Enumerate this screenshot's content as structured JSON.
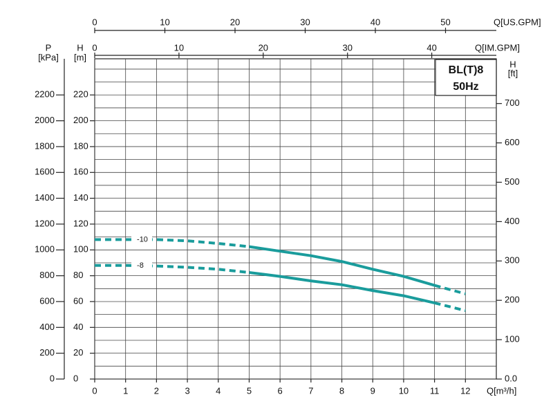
{
  "chart_data": {
    "type": "line",
    "title": "BL(T)8",
    "subtitle": "50Hz",
    "xlabel": "Q[m³/h]",
    "xlim": [
      0,
      13
    ],
    "xticks": [
      0,
      1,
      2,
      3,
      4,
      5,
      6,
      7,
      8,
      9,
      10,
      11,
      12
    ],
    "ylabel": "H",
    "yunit": "[m]",
    "ylim": [
      0,
      248
    ],
    "yticks": [
      0,
      20,
      40,
      60,
      80,
      100,
      120,
      140,
      160,
      180,
      200,
      220
    ],
    "yminor": [
      10,
      30,
      50,
      70,
      90,
      110,
      130,
      150,
      170,
      190,
      210,
      230,
      240
    ],
    "pressure_axis": {
      "label": "P",
      "unit": "[kPa]",
      "lim": [
        0,
        2480
      ],
      "ticks": [
        0,
        200,
        400,
        600,
        800,
        1000,
        1200,
        1400,
        1600,
        1800,
        2000,
        2200
      ]
    },
    "feet_axis": {
      "label": "H",
      "unit": "[ft]",
      "lim": [
        0,
        813.65
      ],
      "ticks": [
        {
          "value": 0,
          "label": "0.0"
        },
        100,
        200,
        300,
        400,
        500,
        600,
        700
      ]
    },
    "us_gpm_axis": {
      "label": "Q[US.GPM]",
      "lim": [
        0,
        57.24
      ],
      "ticks": [
        0,
        10,
        20,
        30,
        40,
        50
      ]
    },
    "im_gpm_axis": {
      "label": "Q[IM.GPM]",
      "lim": [
        0,
        47.66
      ],
      "ticks": [
        0,
        10,
        20,
        30,
        40
      ]
    },
    "solid_range": [
      5,
      11
    ],
    "x": [
      0,
      1,
      2,
      3,
      4,
      5,
      6,
      7,
      8,
      9,
      10,
      11,
      12
    ],
    "series": [
      {
        "name": "-10",
        "color": "#1a9c9c",
        "values": [
          108,
          108,
          108,
          107,
          105,
          102.5,
          99,
          95.5,
          91,
          85,
          79.5,
          72.5,
          66
        ]
      },
      {
        "name": "-8",
        "color": "#1a9c9c",
        "values": [
          88,
          88,
          87.5,
          86.5,
          85,
          82.5,
          79.5,
          76,
          73,
          68.5,
          64.5,
          59,
          53
        ]
      }
    ],
    "grid": true
  }
}
